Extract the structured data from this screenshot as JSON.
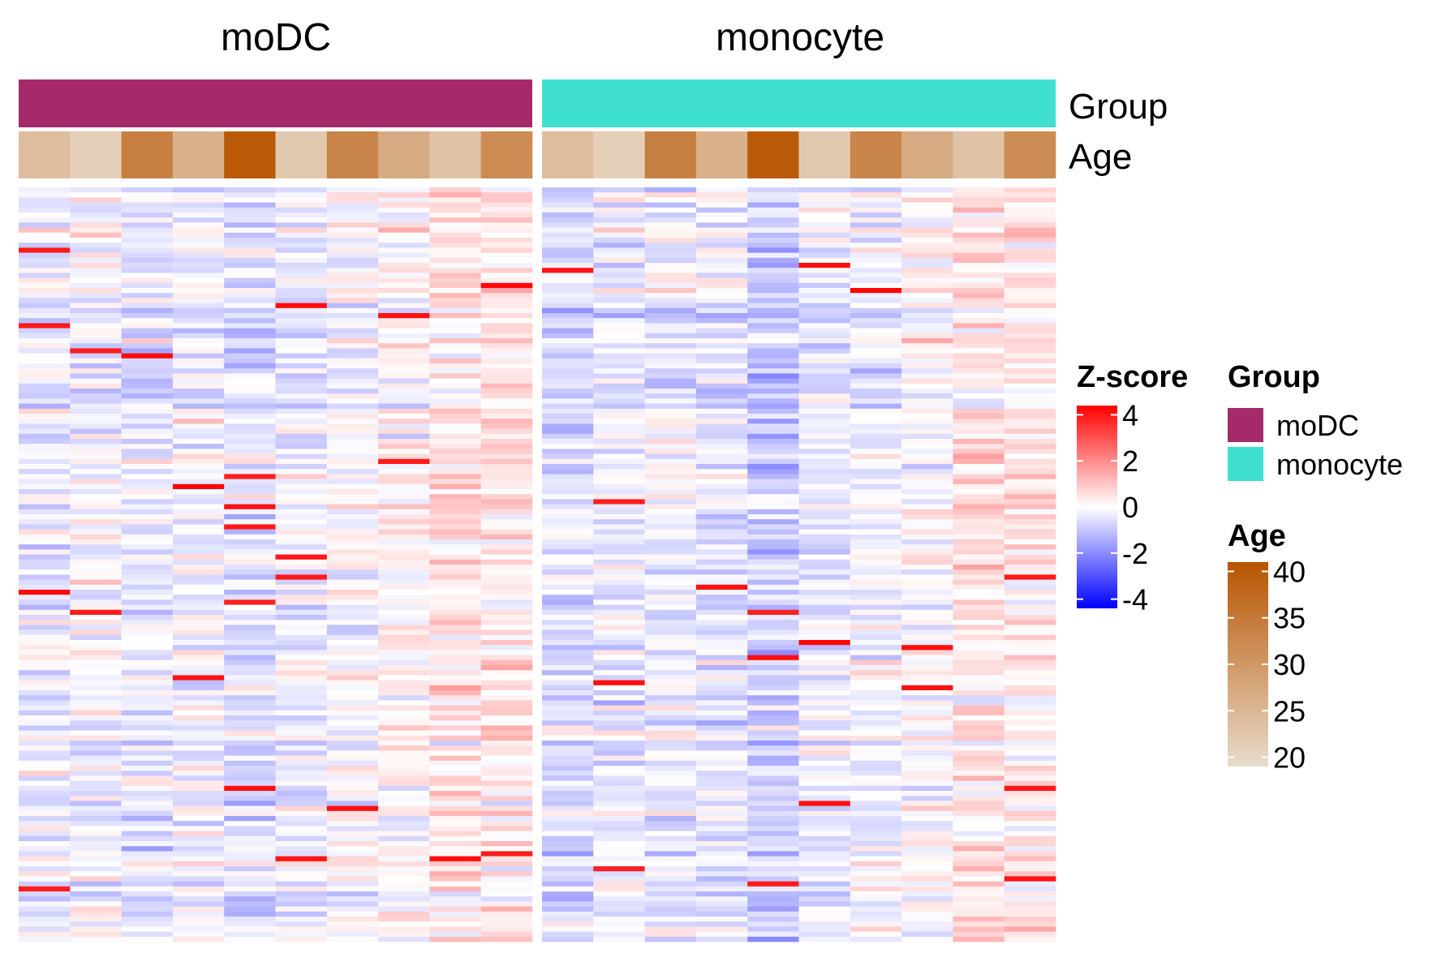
{
  "chart_data": {
    "type": "heatmap",
    "panels": [
      "moDC",
      "monocyte"
    ],
    "annotations": [
      {
        "name": "Group",
        "colors": {
          "moDC": "#A52A6A",
          "monocyte": "#40E0D0"
        }
      },
      {
        "name": "Age"
      }
    ],
    "columns": [
      {
        "group": "moDC",
        "age": 24
      },
      {
        "group": "moDC",
        "age": 21
      },
      {
        "group": "moDC",
        "age": 34
      },
      {
        "group": "moDC",
        "age": 26
      },
      {
        "group": "moDC",
        "age": 40
      },
      {
        "group": "moDC",
        "age": 22
      },
      {
        "group": "moDC",
        "age": 33
      },
      {
        "group": "moDC",
        "age": 27
      },
      {
        "group": "moDC",
        "age": 23
      },
      {
        "group": "moDC",
        "age": 32
      },
      {
        "group": "monocyte",
        "age": 24
      },
      {
        "group": "monocyte",
        "age": 21
      },
      {
        "group": "monocyte",
        "age": 34
      },
      {
        "group": "monocyte",
        "age": 26
      },
      {
        "group": "monocyte",
        "age": 40
      },
      {
        "group": "monocyte",
        "age": 22
      },
      {
        "group": "monocyte",
        "age": 33
      },
      {
        "group": "monocyte",
        "age": 27
      },
      {
        "group": "monocyte",
        "age": 23
      },
      {
        "group": "monocyte",
        "age": 32
      }
    ],
    "n_rows": 150,
    "zscore_legend": {
      "title": "Z-score",
      "range": [
        -4.4,
        4.4
      ],
      "ticks": [
        4,
        2,
        0,
        -2,
        -4
      ],
      "colors": {
        "low": "#0000FF",
        "mid": "#FFFFFF",
        "high": "#FF0000"
      }
    },
    "group_legend": {
      "title": "Group",
      "entries": [
        {
          "label": "moDC",
          "color": "#A52A6A"
        },
        {
          "label": "monocyte",
          "color": "#40E0D0"
        }
      ]
    },
    "age_legend": {
      "title": "Age",
      "range": [
        19,
        41
      ],
      "ticks": [
        40,
        35,
        30,
        25,
        20
      ],
      "colors": {
        "low": "#E8DCCB",
        "high": "#B85400"
      }
    },
    "column_bias": [
      -0.25,
      -0.1,
      -0.35,
      -0.15,
      -0.5,
      -0.2,
      0.05,
      0.25,
      0.45,
      0.5,
      -0.55,
      -0.35,
      -0.3,
      -0.35,
      -0.75,
      -0.3,
      -0.2,
      0.1,
      0.55,
      0.35
    ]
  }
}
